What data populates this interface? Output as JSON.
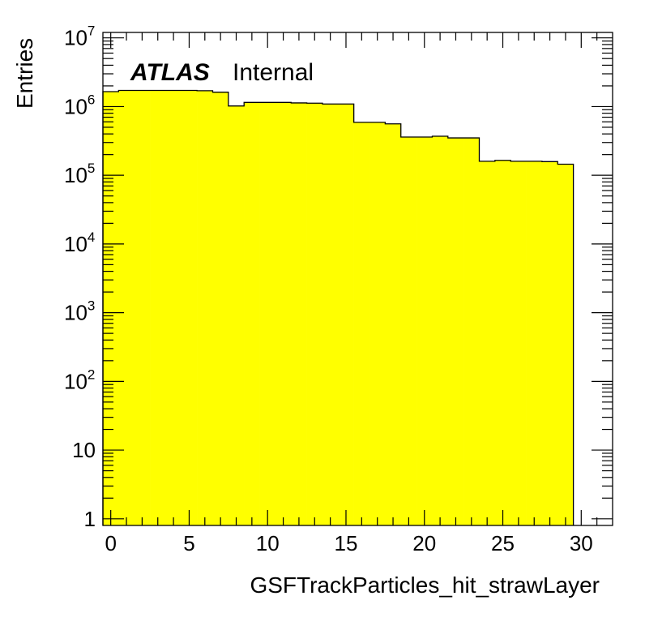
{
  "chart_data": {
    "type": "bar",
    "histogram": true,
    "xlabel": "GSFTrackParticles_hit_strawLayer",
    "ylabel": "Entries",
    "label_bold": "ATLAS",
    "label_status": "Internal",
    "y_scale": "log",
    "xlim": [
      -0.5,
      32
    ],
    "ylim": [
      0.8,
      12000000
    ],
    "x_ticks": [
      0,
      5,
      10,
      15,
      20,
      25,
      30
    ],
    "y_ticks": [
      {
        "value": 1,
        "label": "1"
      },
      {
        "value": 10,
        "label": "10"
      },
      {
        "value": 100,
        "base": "10",
        "exp": "2"
      },
      {
        "value": 1000,
        "base": "10",
        "exp": "3"
      },
      {
        "value": 10000,
        "base": "10",
        "exp": "4"
      },
      {
        "value": 100000,
        "base": "10",
        "exp": "5"
      },
      {
        "value": 1000000,
        "base": "10",
        "exp": "6"
      },
      {
        "value": 10000000,
        "base": "10",
        "exp": "7"
      }
    ],
    "fill_color": "#ffff00",
    "line_color": "#000000",
    "bin_edges": [
      -0.5,
      0.5,
      1.5,
      2.5,
      3.5,
      4.5,
      5.5,
      6.5,
      7.5,
      8.5,
      9.5,
      10.5,
      11.5,
      12.5,
      13.5,
      14.5,
      15.5,
      16.5,
      17.5,
      18.5,
      19.5,
      20.5,
      21.5,
      22.5,
      23.5,
      24.5,
      25.5,
      26.5,
      27.5,
      28.5,
      29.5
    ],
    "values": [
      1650000,
      1720000,
      1720000,
      1720000,
      1720000,
      1720000,
      1700000,
      1620000,
      1020000,
      1150000,
      1150000,
      1150000,
      1130000,
      1120000,
      1090000,
      1090000,
      590000,
      590000,
      560000,
      360000,
      360000,
      370000,
      350000,
      350000,
      160000,
      165000,
      160000,
      160000,
      158000,
      145000
    ]
  }
}
